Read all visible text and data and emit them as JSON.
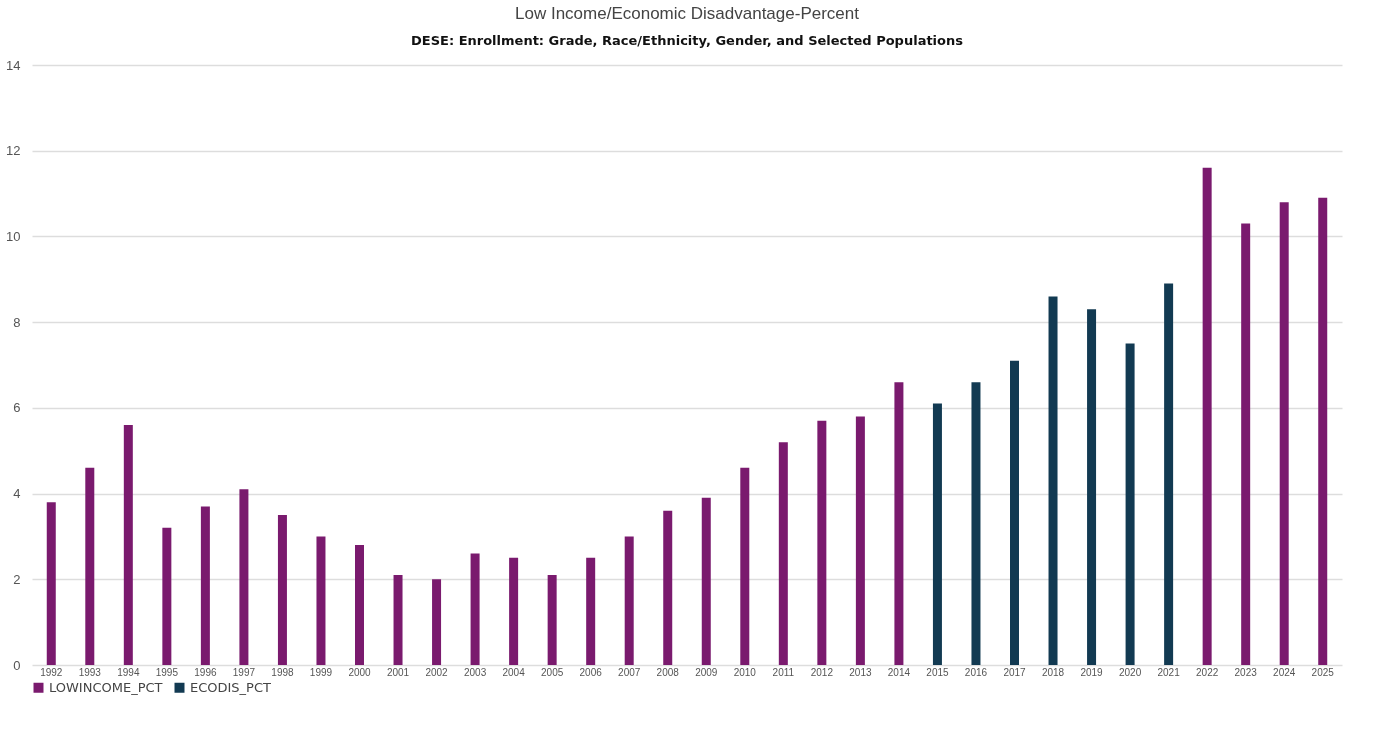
{
  "chart_data": {
    "type": "bar",
    "title": "Low Income/Economic Disadvantage-Percent",
    "subtitle": "DESE: Enrollment: Grade, Race/Ethnicity, Gender, and Selected Populations",
    "categories": [
      "1992",
      "1993",
      "1994",
      "1995",
      "1996",
      "1997",
      "1998",
      "1999",
      "2000",
      "2001",
      "2002",
      "2003",
      "2004",
      "2005",
      "2006",
      "2007",
      "2008",
      "2009",
      "2010",
      "2011",
      "2012",
      "2013",
      "2014",
      "2015",
      "2016",
      "2017",
      "2018",
      "2019",
      "2020",
      "2021",
      "2022",
      "2023",
      "2024",
      "2025"
    ],
    "series": [
      {
        "name": "LOWINCOME_PCT",
        "color": "#7a1a6e",
        "values": [
          3.8,
          4.6,
          5.6,
          3.2,
          3.7,
          4.1,
          3.5,
          3.0,
          2.8,
          2.1,
          2.0,
          2.6,
          2.5,
          2.1,
          2.5,
          3.0,
          3.6,
          3.9,
          4.6,
          5.2,
          5.7,
          5.8,
          6.6,
          null,
          null,
          null,
          null,
          null,
          null,
          null,
          11.6,
          10.3,
          10.8,
          10.9
        ]
      },
      {
        "name": "ECODIS_PCT",
        "color": "#123a52",
        "values": [
          null,
          null,
          null,
          null,
          null,
          null,
          null,
          null,
          null,
          null,
          null,
          null,
          null,
          null,
          null,
          null,
          null,
          null,
          null,
          null,
          null,
          null,
          null,
          6.1,
          6.6,
          7.1,
          8.6,
          8.3,
          7.5,
          8.9,
          null,
          null,
          null,
          null
        ]
      }
    ],
    "ylim": [
      0,
      14
    ],
    "yticks": [
      0,
      2,
      4,
      6,
      8,
      10,
      12,
      14
    ],
    "grid": "y",
    "legend": "bottom"
  }
}
